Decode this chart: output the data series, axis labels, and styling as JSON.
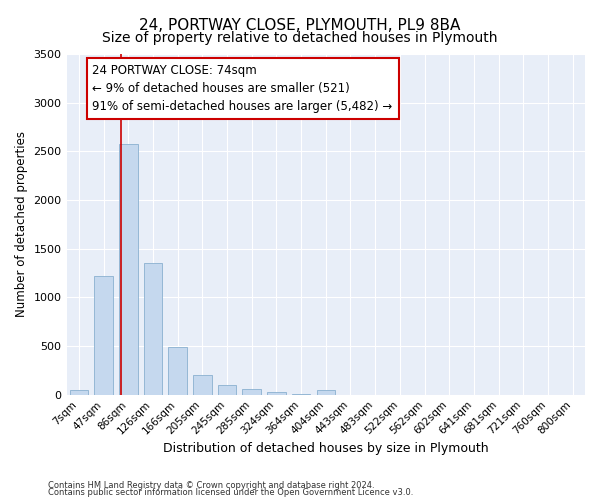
{
  "title1": "24, PORTWAY CLOSE, PLYMOUTH, PL9 8BA",
  "title2": "Size of property relative to detached houses in Plymouth",
  "xlabel": "Distribution of detached houses by size in Plymouth",
  "ylabel": "Number of detached properties",
  "bar_labels": [
    "7sqm",
    "47sqm",
    "86sqm",
    "126sqm",
    "166sqm",
    "205sqm",
    "245sqm",
    "285sqm",
    "324sqm",
    "364sqm",
    "404sqm",
    "443sqm",
    "483sqm",
    "522sqm",
    "562sqm",
    "602sqm",
    "641sqm",
    "681sqm",
    "721sqm",
    "760sqm",
    "800sqm"
  ],
  "bar_values": [
    50,
    1220,
    2580,
    1350,
    490,
    200,
    105,
    55,
    30,
    10,
    45,
    2,
    1,
    0,
    0,
    0,
    0,
    0,
    0,
    0,
    0
  ],
  "bar_color": "#c5d8ee",
  "bar_edge_color": "#8ab0d0",
  "vline_x": 1.5,
  "vline_color": "#cc0000",
  "annotation_text": "24 PORTWAY CLOSE: 74sqm\n← 9% of detached houses are smaller (521)\n91% of semi-detached houses are larger (5,482) →",
  "annotation_box_color": "white",
  "annotation_box_edge": "#cc0000",
  "ylim": [
    0,
    3500
  ],
  "yticks": [
    0,
    500,
    1000,
    1500,
    2000,
    2500,
    3000,
    3500
  ],
  "footer1": "Contains HM Land Registry data © Crown copyright and database right 2024.",
  "footer2": "Contains public sector information licensed under the Open Government Licence v3.0.",
  "bg_color": "#ffffff",
  "plot_bg_color": "#e8eef8",
  "title1_fontsize": 11,
  "title2_fontsize": 10,
  "ann_fontsize": 8.5
}
